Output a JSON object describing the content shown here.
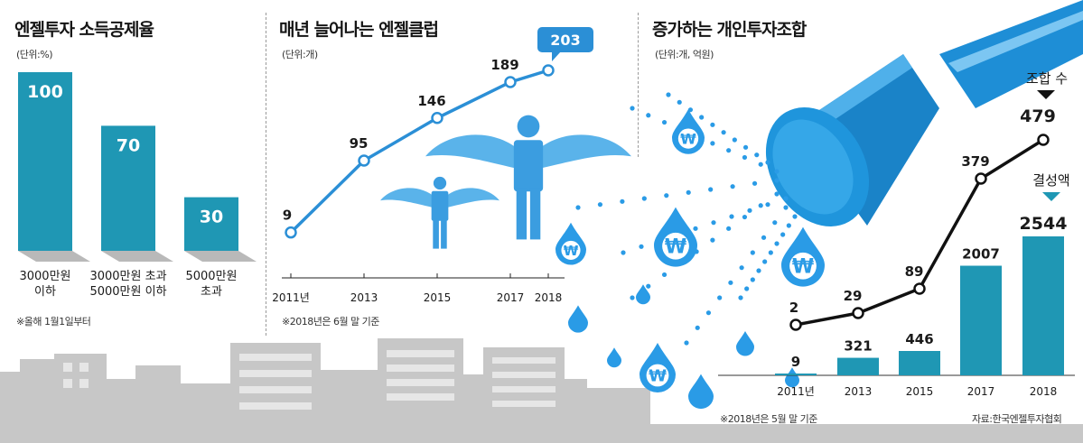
{
  "colors": {
    "bar": "#1f97b4",
    "bar_shadow": "#b9b9b9",
    "line_blue": "#2b8fd6",
    "drop_blue": "#2a9be6",
    "angel_blue": "#3b9de0",
    "city_gray": "#c4c4c4",
    "line_black": "#111111"
  },
  "panel1": {
    "title": "엔젤투자 소득공제율",
    "unit": "(단위:%)",
    "note": "※올해 1월1일부터"
  },
  "panel2": {
    "title": "매년 늘어나는 엔젤클럽",
    "unit": "(단위:개)",
    "note": "※2018년은 6월 말 기준"
  },
  "panel3": {
    "title": "증가하는 개인투자조합",
    "unit": "(단위:개, 억원)",
    "note": "※2018년은 5월 말 기준",
    "source": "자료:한국엔젤투자협회",
    "callout_count": "조합 수",
    "callout_amount": "결성액",
    "won_symbol": "₩"
  },
  "chart_data": [
    {
      "type": "bar",
      "title": "엔젤투자 소득공제율",
      "unit": "(단위:%)",
      "categories": [
        [
          "3000만원",
          "이하"
        ],
        [
          "3000만원 초과",
          "5000만원 이하"
        ],
        [
          "5000만원",
          "초과"
        ]
      ],
      "values": [
        100,
        70,
        30
      ],
      "ylim": [
        0,
        100
      ]
    },
    {
      "type": "line",
      "title": "매년 늘어나는 엔젤클럽",
      "unit": "(단위:개)",
      "x": [
        "2011년",
        "2013",
        "2015",
        "2017",
        "2018"
      ],
      "values": [
        9,
        95,
        146,
        189,
        203
      ],
      "highlight_last": true
    },
    {
      "type": "bar+line",
      "title": "증가하는 개인투자조합",
      "unit": "(단위:개, 억원)",
      "x": [
        "2011년",
        "2013",
        "2015",
        "2017",
        "2018"
      ],
      "series": [
        {
          "name": "조합 수",
          "type": "line",
          "values": [
            2,
            29,
            89,
            379,
            479
          ]
        },
        {
          "name": "결성액",
          "type": "bar",
          "values": [
            9,
            321,
            446,
            2007,
            2544
          ]
        }
      ]
    }
  ]
}
